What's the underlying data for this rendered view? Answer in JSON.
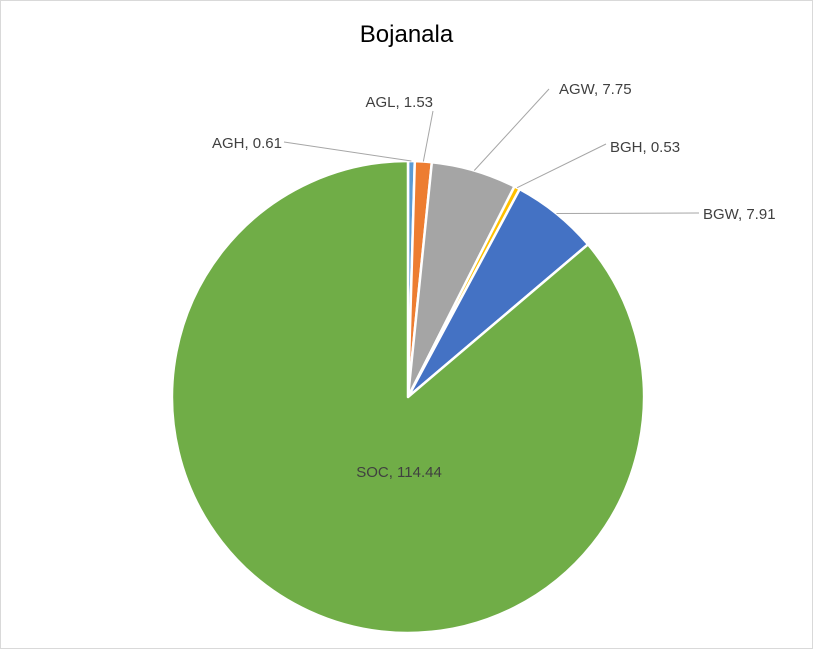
{
  "chart_data": {
    "type": "pie",
    "title": "Bojanala",
    "categories": [
      "AGH",
      "AGL",
      "AGW",
      "BGH",
      "BGW",
      "SOC"
    ],
    "values": [
      0.61,
      1.53,
      7.75,
      0.53,
      7.91,
      114.44
    ],
    "labels": [
      "AGH, 0.61",
      "AGL, 1.53",
      "AGW, 7.75",
      "BGH, 0.53",
      "BGW, 7.91",
      "SOC, 114.44"
    ],
    "colors": [
      "#5B9BD5",
      "#ED7D31",
      "#A5A5A5",
      "#FFC000",
      "#4472C4",
      "#70AD47"
    ],
    "legend": "none",
    "data_labels": "category and value"
  }
}
